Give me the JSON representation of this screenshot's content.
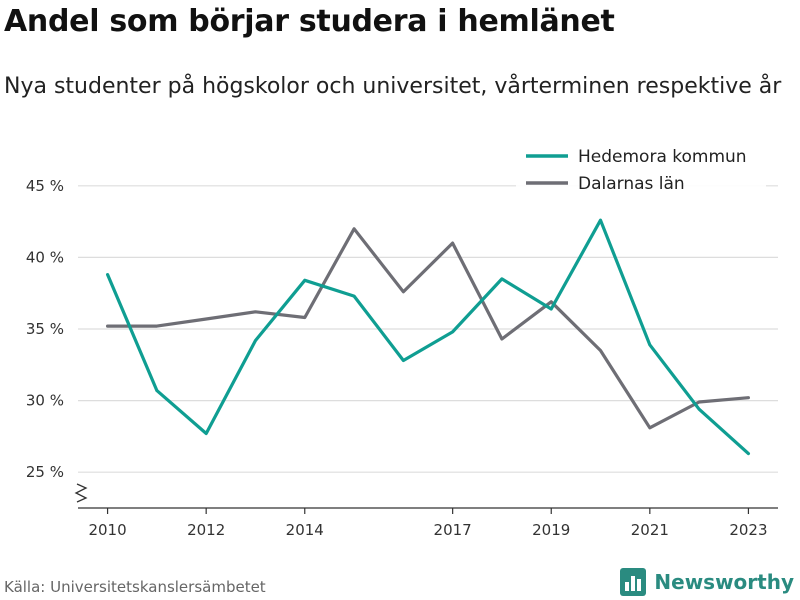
{
  "header": {
    "title": "Andel som börjar studera i hemlänet",
    "subtitle": "Nya studenter på högskolor och universitet, vårterminen respektive år"
  },
  "footer": {
    "source": "Källa: Universitetskanslersämbetet",
    "brand": "Newsworthy",
    "brand_icon": "bar-chart-logo-icon"
  },
  "colors": {
    "hedemora": "#0f9e92",
    "dalarna": "#6e6e75",
    "grid": "#dddddd",
    "axis": "#333333"
  },
  "chart_data": {
    "type": "line",
    "title": "Andel som börjar studera i hemlänet",
    "xlabel": "",
    "ylabel": "",
    "x": [
      2010,
      2011,
      2012,
      2013,
      2014,
      2015,
      2016,
      2017,
      2018,
      2019,
      2020,
      2021,
      2022,
      2023
    ],
    "x_ticks": [
      2010,
      2012,
      2014,
      2017,
      2019,
      2021,
      2023
    ],
    "y_ticks": [
      25,
      30,
      35,
      40,
      45
    ],
    "y_tick_labels": [
      "25 %",
      "30 %",
      "35 %",
      "40 %",
      "45 %"
    ],
    "ylim": [
      22.5,
      47.5
    ],
    "xlim": [
      2009.4,
      2023.6
    ],
    "grid": true,
    "legend_position": "top-right",
    "axis_break": true,
    "series": [
      {
        "name": "Hedemora kommun",
        "color": "#0f9e92",
        "values": [
          38.8,
          30.7,
          27.7,
          34.2,
          38.4,
          37.3,
          32.8,
          34.8,
          38.5,
          36.4,
          42.6,
          33.9,
          29.4,
          26.3
        ]
      },
      {
        "name": "Dalarnas län",
        "color": "#6e6e75",
        "values": [
          35.2,
          35.2,
          35.7,
          36.2,
          35.8,
          42.0,
          37.6,
          41.0,
          34.3,
          36.9,
          33.5,
          28.1,
          29.9,
          30.2
        ]
      }
    ]
  }
}
